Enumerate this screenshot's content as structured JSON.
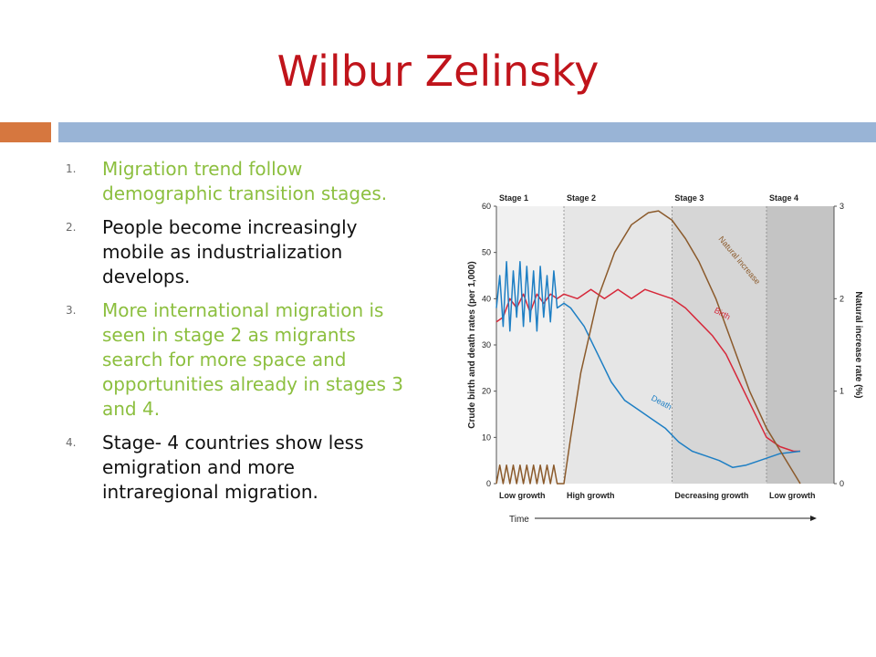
{
  "slide": {
    "title": "Wilbur Zelinsky",
    "accent_colors": {
      "title": "#c0141b",
      "bar_left": "#d6773f",
      "bar_right": "#99b4d6",
      "green_text": "#8cbf3f"
    },
    "points": [
      {
        "number": "1.",
        "text": "Migration trend follow demographic transition stages.",
        "color": "green"
      },
      {
        "number": "2.",
        "text": "People become increasingly mobile as industrialization develops.",
        "color": "black"
      },
      {
        "number": "3.",
        "text": "More international migration is seen in stage 2 as migrants search for more space and opportunities already in stages 3 and 4.",
        "color": "green"
      },
      {
        "number": "4.",
        "text": "Stage- 4 countries show less emigration and more intraregional migration.",
        "color": "black"
      }
    ]
  },
  "chart_data": {
    "type": "line",
    "title": "",
    "xlabel": "Time",
    "ylabel": "Crude birth and death rates (per 1,000)",
    "ylabel_right": "Natural increase rate (%)",
    "ylim": [
      0,
      60
    ],
    "ylim_right": [
      0,
      3
    ],
    "yticks": [
      0,
      10,
      20,
      30,
      40,
      50,
      60
    ],
    "yticks_right": [
      0,
      1,
      2,
      3
    ],
    "xlim": [
      0,
      100
    ],
    "stages": [
      {
        "label": "Stage 1",
        "growth": "Low growth",
        "start": 0,
        "end": 20,
        "shade": "#f1f1f1"
      },
      {
        "label": "Stage 2",
        "growth": "High growth",
        "start": 20,
        "end": 52,
        "shade": "#e6e6e6"
      },
      {
        "label": "Stage 3",
        "growth": "Decreasing growth",
        "start": 52,
        "end": 80,
        "shade": "#d6d6d6"
      },
      {
        "label": "Stage 4",
        "growth": "Low growth",
        "start": 80,
        "end": 100,
        "shade": "#c4c4c4"
      }
    ],
    "series": [
      {
        "name": "Birth",
        "axis": "left",
        "color": "#d6283a",
        "points": [
          [
            0,
            35
          ],
          [
            2,
            36
          ],
          [
            4,
            40
          ],
          [
            6,
            38
          ],
          [
            8,
            41
          ],
          [
            10,
            37
          ],
          [
            12,
            41
          ],
          [
            14,
            39
          ],
          [
            16,
            41
          ],
          [
            18,
            40
          ],
          [
            20,
            41
          ],
          [
            24,
            40
          ],
          [
            28,
            42
          ],
          [
            32,
            40
          ],
          [
            36,
            42
          ],
          [
            40,
            40
          ],
          [
            44,
            42
          ],
          [
            48,
            41
          ],
          [
            52,
            40
          ],
          [
            56,
            38
          ],
          [
            60,
            35
          ],
          [
            64,
            32
          ],
          [
            68,
            28
          ],
          [
            72,
            22
          ],
          [
            76,
            16
          ],
          [
            80,
            10
          ],
          [
            84,
            8
          ],
          [
            88,
            7
          ],
          [
            90,
            7
          ]
        ]
      },
      {
        "name": "Death",
        "axis": "left",
        "color": "#1e7fc4",
        "points": [
          [
            0,
            38
          ],
          [
            1,
            45
          ],
          [
            2,
            34
          ],
          [
            3,
            48
          ],
          [
            4,
            33
          ],
          [
            5,
            46
          ],
          [
            6,
            36
          ],
          [
            7,
            48
          ],
          [
            8,
            34
          ],
          [
            9,
            47
          ],
          [
            10,
            35
          ],
          [
            11,
            46
          ],
          [
            12,
            33
          ],
          [
            13,
            47
          ],
          [
            14,
            36
          ],
          [
            15,
            45
          ],
          [
            16,
            35
          ],
          [
            17,
            46
          ],
          [
            18,
            38
          ],
          [
            20,
            39
          ],
          [
            22,
            38
          ],
          [
            26,
            34
          ],
          [
            30,
            28
          ],
          [
            34,
            22
          ],
          [
            38,
            18
          ],
          [
            42,
            16
          ],
          [
            46,
            14
          ],
          [
            50,
            12
          ],
          [
            54,
            9
          ],
          [
            58,
            7
          ],
          [
            62,
            6
          ],
          [
            66,
            5
          ],
          [
            70,
            3.5
          ],
          [
            74,
            4
          ],
          [
            78,
            5
          ],
          [
            84,
            6.5
          ],
          [
            90,
            7
          ]
        ]
      },
      {
        "name": "Natural increase",
        "axis": "right",
        "color": "#8b5a2b",
        "points": [
          [
            0,
            0
          ],
          [
            1,
            0.2
          ],
          [
            2,
            0
          ],
          [
            3,
            0.2
          ],
          [
            4,
            0
          ],
          [
            5,
            0.2
          ],
          [
            6,
            0
          ],
          [
            7,
            0.2
          ],
          [
            8,
            0
          ],
          [
            9,
            0.2
          ],
          [
            10,
            0
          ],
          [
            11,
            0.2
          ],
          [
            12,
            0
          ],
          [
            13,
            0.2
          ],
          [
            14,
            0
          ],
          [
            15,
            0.2
          ],
          [
            16,
            0
          ],
          [
            17,
            0.2
          ],
          [
            18,
            0
          ],
          [
            20,
            0
          ],
          [
            22,
            0.5
          ],
          [
            25,
            1.2
          ],
          [
            30,
            2.0
          ],
          [
            35,
            2.5
          ],
          [
            40,
            2.8
          ],
          [
            45,
            2.93
          ],
          [
            48,
            2.95
          ],
          [
            52,
            2.85
          ],
          [
            56,
            2.65
          ],
          [
            60,
            2.4
          ],
          [
            65,
            2.0
          ],
          [
            70,
            1.5
          ],
          [
            75,
            1.0
          ],
          [
            80,
            0.6
          ],
          [
            85,
            0.3
          ],
          [
            90,
            0
          ]
        ]
      }
    ],
    "series_labels": [
      "Birth",
      "Death",
      "Natural increase"
    ]
  }
}
